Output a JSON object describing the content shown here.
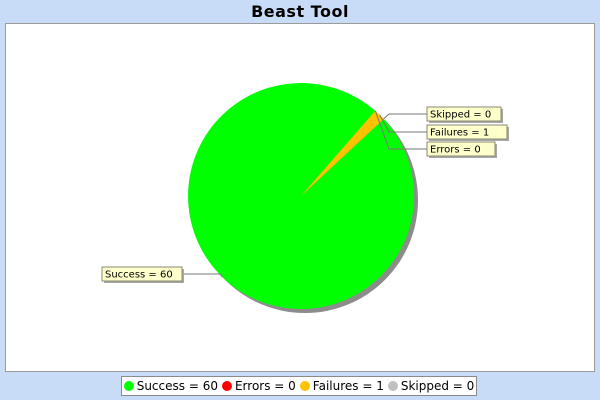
{
  "window": {
    "title": "Beast Tool"
  },
  "chart_data": {
    "type": "pie",
    "title": "Beast Tool",
    "categories": [
      "Success",
      "Errors",
      "Failures",
      "Skipped"
    ],
    "values": [
      60,
      0,
      1,
      0
    ],
    "colors": [
      "#00ff00",
      "#ff0000",
      "#ffc200",
      "#c0c0c0"
    ],
    "slice_labels": [
      "Success = 60",
      "Errors = 0",
      "Failures = 1",
      "Skipped = 0"
    ],
    "legend": {
      "position": "bottom",
      "entries": [
        {
          "label": "Success = 60",
          "color": "#00ff00"
        },
        {
          "label": "Errors = 0",
          "color": "#ff0000"
        },
        {
          "label": "Failures = 1",
          "color": "#ffc200"
        },
        {
          "label": "Skipped = 0",
          "color": "#c0c0c0"
        }
      ]
    }
  }
}
